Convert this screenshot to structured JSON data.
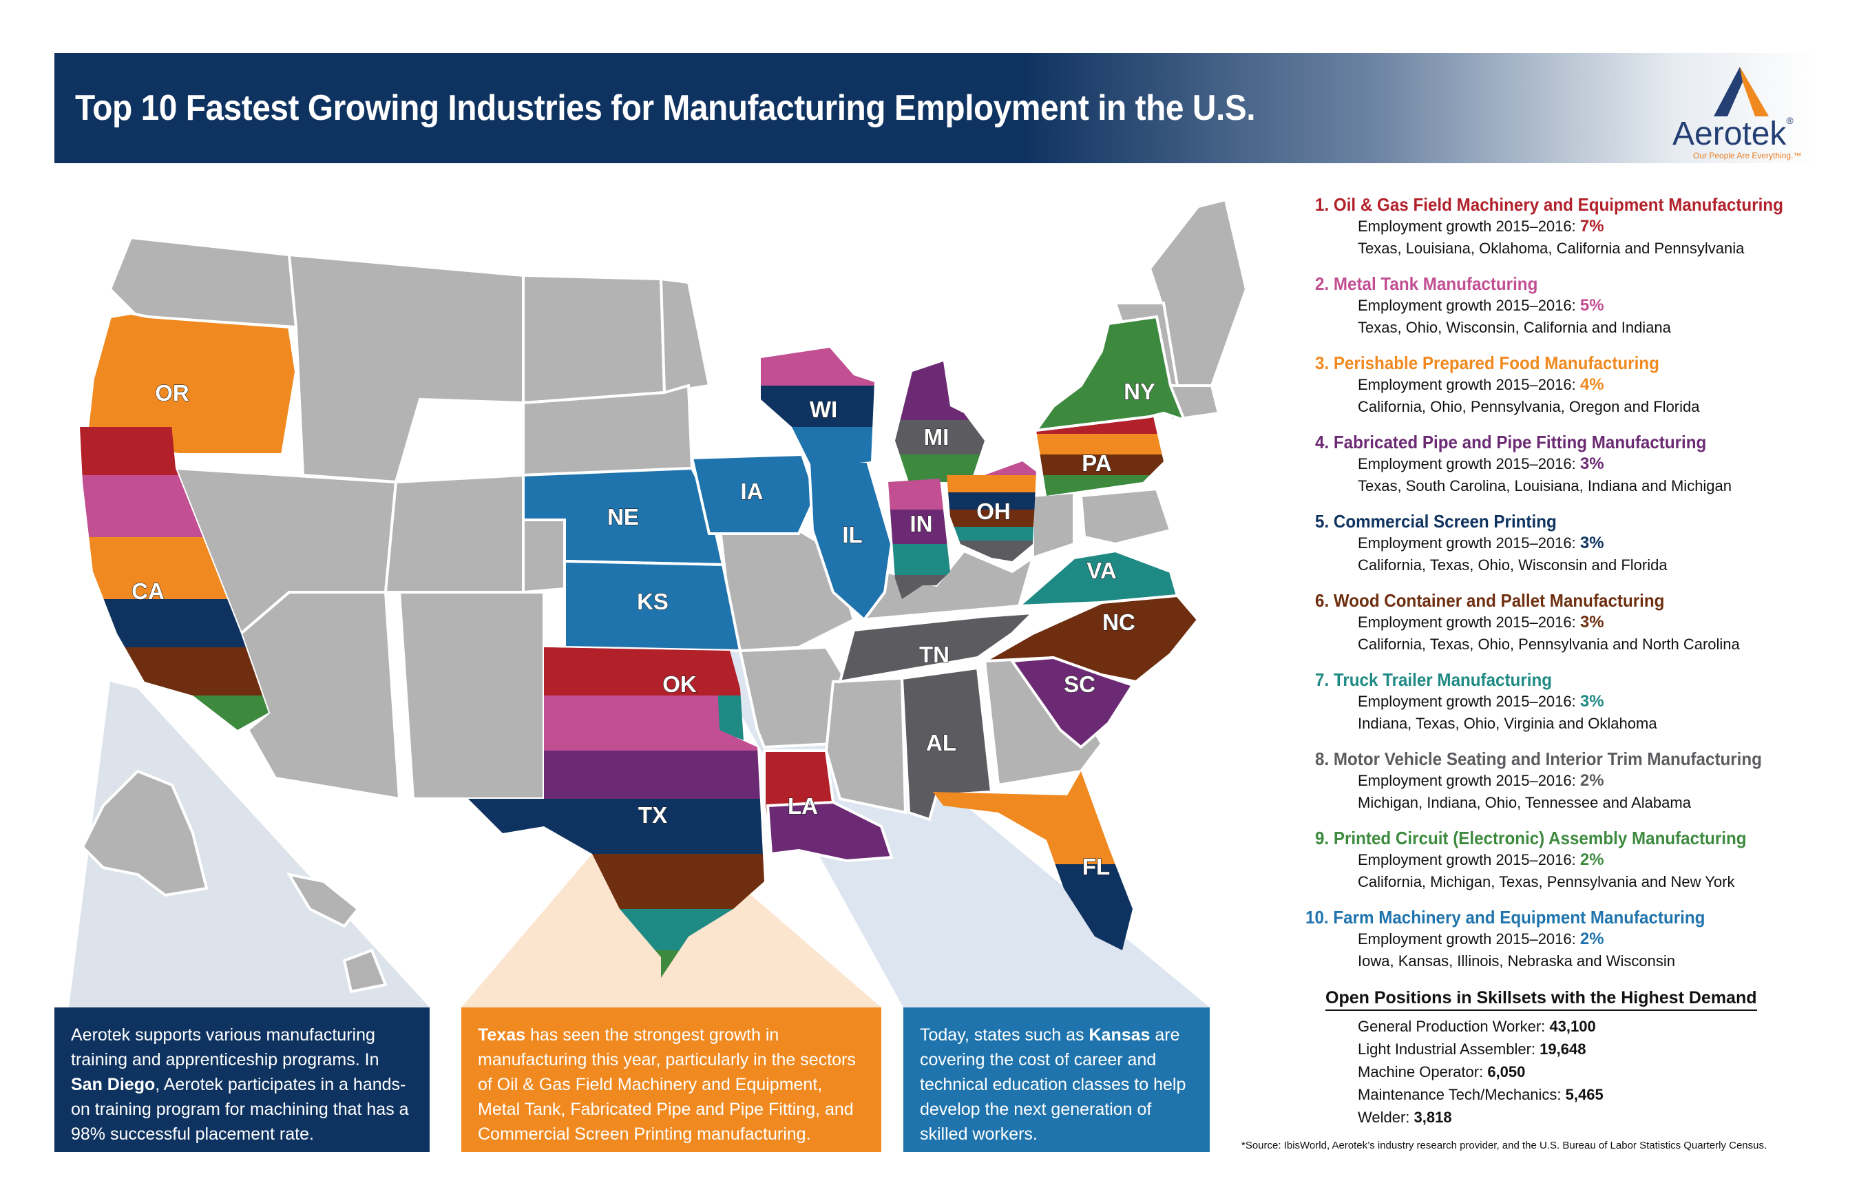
{
  "header": {
    "title": "Top 10 Fastest Growing Industries for Manufacturing Employment in the U.S.",
    "logo_name": "Aerotek",
    "logo_reg": "®",
    "logo_tagline": "Our People Are Everything.™"
  },
  "colors": {
    "rank1": "#b2202a",
    "rank2": "#c14f92",
    "rank3": "#f0891f",
    "rank4": "#6b2a73",
    "rank5": "#0f3360",
    "rank6": "#6e2e0f",
    "rank7": "#1f8a84",
    "rank8": "#5c5c60",
    "rank9": "#3d8a3f",
    "rank10": "#1f74ad",
    "neutral_state": "#b3b3b3"
  },
  "map": {
    "states": [
      {
        "abbr": "OR",
        "color_key": "rank3"
      },
      {
        "abbr": "CA",
        "color_key": "rank1"
      },
      {
        "abbr": "NE",
        "color_key": "rank10"
      },
      {
        "abbr": "IA",
        "color_key": "rank10"
      },
      {
        "abbr": "KS",
        "color_key": "rank10"
      },
      {
        "abbr": "OK",
        "color_key": "rank1"
      },
      {
        "abbr": "TX",
        "color_key": "rank1"
      },
      {
        "abbr": "LA",
        "color_key": "rank1"
      },
      {
        "abbr": "WI",
        "color_key": "rank2"
      },
      {
        "abbr": "IL",
        "color_key": "rank10"
      },
      {
        "abbr": "MI",
        "color_key": "rank4"
      },
      {
        "abbr": "IN",
        "color_key": "rank2"
      },
      {
        "abbr": "OH",
        "color_key": "rank2"
      },
      {
        "abbr": "PA",
        "color_key": "rank1"
      },
      {
        "abbr": "NY",
        "color_key": "rank9"
      },
      {
        "abbr": "VA",
        "color_key": "rank7"
      },
      {
        "abbr": "NC",
        "color_key": "rank6"
      },
      {
        "abbr": "SC",
        "color_key": "rank4"
      },
      {
        "abbr": "TN",
        "color_key": "rank8"
      },
      {
        "abbr": "AL",
        "color_key": "rank8"
      },
      {
        "abbr": "FL",
        "color_key": "rank3"
      }
    ]
  },
  "callouts": {
    "box1": {
      "pre": "Aerotek supports various manufacturing training and apprenticeship programs. In ",
      "bold": "San Diego",
      "post": ", Aerotek participates in a hands-on training program for machining that has a 98% successful placement rate."
    },
    "box2": {
      "bold": "Texas",
      "post": " has seen the strongest growth in manufacturing this year, particularly in the sectors of Oil & Gas Field Machinery and Equipment, Metal Tank, Fabricated Pipe and Pipe Fitting, and Commercial Screen Printing manufacturing."
    },
    "box3": {
      "pre": "Today, states such as ",
      "bold": "Kansas",
      "post": " are covering the cost of career and technical education classes to help develop the next generation of skilled workers."
    }
  },
  "industries": [
    {
      "rank": "1.",
      "name": "Oil & Gas Field Machinery and Equipment Manufacturing",
      "growth_label": "Employment growth 2015–2016:",
      "growth": "7%",
      "states": "Texas, Louisiana, Oklahoma, California and Pennsylvania",
      "color": "#b2202a"
    },
    {
      "rank": "2.",
      "name": "Metal Tank Manufacturing",
      "growth_label": "Employment growth 2015–2016:",
      "growth": "5%",
      "states": "Texas, Ohio, Wisconsin, California and Indiana",
      "color": "#c14f92"
    },
    {
      "rank": "3.",
      "name": "Perishable Prepared Food Manufacturing",
      "growth_label": "Employment growth 2015–2016:",
      "growth": "4%",
      "states": "California, Ohio, Pennsylvania, Oregon and Florida",
      "color": "#f0891f"
    },
    {
      "rank": "4.",
      "name": "Fabricated Pipe and Pipe Fitting Manufacturing",
      "growth_label": "Employment growth 2015–2016:",
      "growth": "3%",
      "states": "Texas, South Carolina, Louisiana, Indiana and Michigan",
      "color": "#6b2a73"
    },
    {
      "rank": "5.",
      "name": "Commercial Screen Printing",
      "growth_label": "Employment growth 2015–2016:",
      "growth": "3%",
      "states": "California, Texas, Ohio, Wisconsin and Florida",
      "color": "#0f3360"
    },
    {
      "rank": "6.",
      "name": "Wood Container and Pallet Manufacturing",
      "growth_label": "Employment growth 2015–2016:",
      "growth": "3%",
      "states": "California, Texas, Ohio, Pennsylvania and North Carolina",
      "color": "#6e2e0f"
    },
    {
      "rank": "7.",
      "name": "Truck Trailer Manufacturing",
      "growth_label": "Employment growth 2015–2016:",
      "growth": "3%",
      "states": "Indiana, Texas, Ohio, Virginia and Oklahoma",
      "color": "#1f8a84"
    },
    {
      "rank": "8.",
      "name": "Motor Vehicle Seating and Interior Trim Manufacturing",
      "growth_label": "Employment growth 2015–2016:",
      "growth": "2%",
      "states": "Michigan, Indiana, Ohio, Tennessee and Alabama",
      "color": "#5c5c60"
    },
    {
      "rank": "9.",
      "name": "Printed Circuit (Electronic) Assembly Manufacturing",
      "growth_label": "Employment growth 2015–2016:",
      "growth": "2%",
      "states": "California, Michigan, Texas, Pennsylvania and New York",
      "color": "#3d8a3f"
    },
    {
      "rank": "10.",
      "name": "Farm Machinery and Equipment Manufacturing",
      "growth_label": "Employment growth 2015–2016:",
      "growth": "2%",
      "states": "Iowa, Kansas, Illinois, Nebraska and Wisconsin",
      "color": "#1f74ad"
    }
  ],
  "open_positions": {
    "title": "Open Positions in Skillsets with the Highest Demand",
    "rows": [
      {
        "label": "General Production Worker:",
        "value": "43,100"
      },
      {
        "label": "Light Industrial Assembler:",
        "value": "19,648"
      },
      {
        "label": "Machine Operator:",
        "value": "6,050"
      },
      {
        "label": "Maintenance Tech/Mechanics:",
        "value": "5,465"
      },
      {
        "label": "Welder:",
        "value": "3,818"
      }
    ]
  },
  "source": "*Source: IbisWorld, Aerotek’s industry research provider, and the U.S. Bureau of Labor Statistics Quarterly Census."
}
